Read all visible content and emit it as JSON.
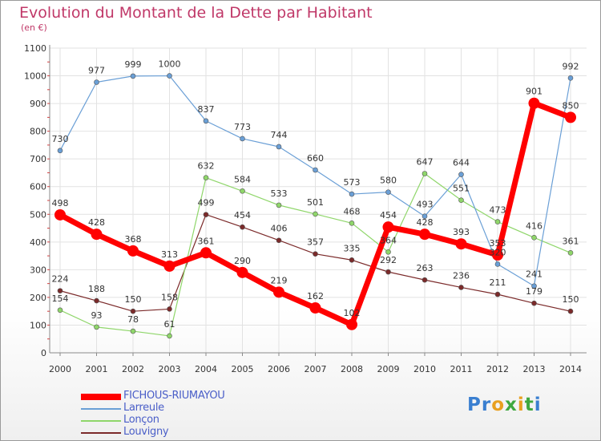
{
  "title": "Evolution du Montant de la Dette par Habitant",
  "subtitle": "(en €)",
  "logo": {
    "text": "Proxiti",
    "colors": [
      "#3a7fd0",
      "#3a7fd0",
      "#e8a020",
      "#3fa83f",
      "#e8a020",
      "#3fa83f",
      "#3a7fd0"
    ]
  },
  "chart_data": {
    "type": "line",
    "title": "Evolution du Montant de la Dette par Habitant",
    "ylabel": "(en €)",
    "x": [
      2000,
      2001,
      2002,
      2003,
      2004,
      2005,
      2006,
      2007,
      2008,
      2009,
      2010,
      2011,
      2012,
      2013,
      2014
    ],
    "x_labels": [
      "2000",
      "2001",
      "2002",
      "2003",
      "2004",
      "2005",
      "2006",
      "2007",
      "2008",
      "2009",
      "2010",
      "2011",
      "2012",
      "2013",
      "2014"
    ],
    "ylim": [
      0,
      1100
    ],
    "yticks": [
      0,
      100,
      200,
      300,
      400,
      500,
      600,
      700,
      800,
      900,
      1000,
      1100
    ],
    "grid": true,
    "legend_position": "bottom-left",
    "series": [
      {
        "name": "Louvigny",
        "color": "#7b2a2a",
        "values": [
          224,
          188,
          150,
          158,
          499,
          454,
          406,
          357,
          335,
          292,
          263,
          236,
          211,
          179,
          150
        ]
      },
      {
        "name": "Lonçon",
        "color": "#8fd66a",
        "values": [
          154,
          93,
          78,
          61,
          632,
          584,
          533,
          501,
          468,
          364,
          647,
          551,
          473,
          416,
          361
        ]
      },
      {
        "name": "Larreule",
        "color": "#6a9fd6",
        "values": [
          730,
          977,
          999,
          1000,
          837,
          773,
          744,
          660,
          573,
          580,
          493,
          644,
          320,
          241,
          992
        ]
      },
      {
        "name": "FICHOUS-RIUMAYOU",
        "color": "#ff0000",
        "values": [
          498,
          428,
          368,
          313,
          361,
          290,
          219,
          162,
          102,
          454,
          428,
          393,
          353,
          901,
          850
        ]
      }
    ],
    "labels": [
      {
        "name": "Louvigny",
        "texts": [
          "224",
          "188",
          "150",
          "158",
          "499",
          "454",
          "406",
          "357",
          "335",
          "292",
          "263",
          "236",
          "211",
          "179",
          "150"
        ]
      },
      {
        "name": "Lonçon",
        "texts": [
          "154",
          "93",
          "78",
          "61",
          "632",
          "584",
          "533",
          "501",
          "468",
          "364",
          "647",
          "551",
          "473",
          "416",
          "361"
        ]
      },
      {
        "name": "Larreule",
        "texts": [
          "730",
          "977",
          "999",
          "1000",
          "837",
          "773",
          "744",
          "660",
          "573",
          "580",
          "493",
          "644",
          "320",
          "241",
          "992"
        ]
      },
      {
        "name": "FICHOUS-RIUMAYOU",
        "texts": [
          "498",
          "428",
          "368",
          "313",
          "361",
          "290",
          "219",
          "162",
          "102",
          "454",
          "428",
          "393",
          "353",
          "901",
          "850"
        ]
      }
    ]
  },
  "legend": [
    {
      "name": "FICHOUS-RIUMAYOU",
      "color": "#ff0000",
      "thick": true
    },
    {
      "name": "Larreule",
      "color": "#6a9fd6",
      "thick": false
    },
    {
      "name": "Lonçon",
      "color": "#8fd66a",
      "thick": false
    },
    {
      "name": "Louvigny",
      "color": "#7b2a2a",
      "thick": false
    }
  ]
}
